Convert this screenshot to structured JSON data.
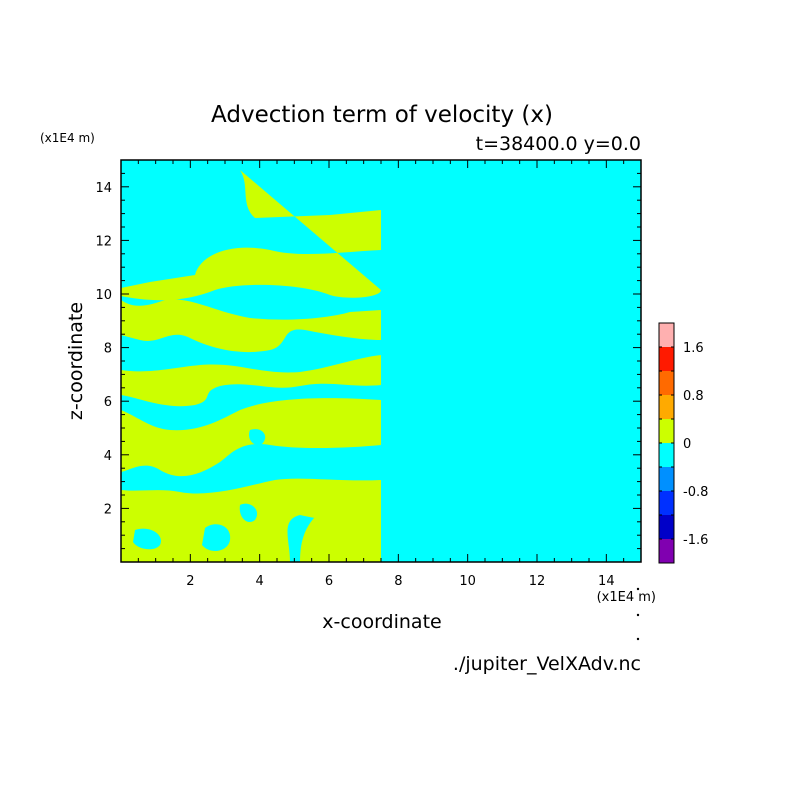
{
  "chart_data": {
    "type": "heatmap",
    "title": "Advection term of velocity (x)",
    "subtitle": "t=38400.0 y=0.0",
    "xlabel": "x-coordinate",
    "ylabel": "z-coordinate",
    "x_unit": "(x1E4 m)",
    "y_unit": "(x1E4 m)",
    "xlim": [
      0,
      15
    ],
    "ylim": [
      0,
      15
    ],
    "x_ticks": [
      2,
      4,
      6,
      8,
      10,
      12,
      14
    ],
    "y_ticks": [
      2,
      4,
      6,
      8,
      10,
      12,
      14
    ],
    "colorbar": {
      "ticks": [
        "1.6",
        "0.8",
        "0",
        "-0.8",
        "-1.6"
      ],
      "levels": [
        {
          "color": "#ffb0b0"
        },
        {
          "color": "#ff1a00"
        },
        {
          "color": "#ff6a00"
        },
        {
          "color": "#ffaa00"
        },
        {
          "color": "#ccff00"
        },
        {
          "color": "#00ffff"
        },
        {
          "color": "#0090ff"
        },
        {
          "color": "#0030ff"
        },
        {
          "color": "#0000c8"
        },
        {
          "color": "#8000b0"
        }
      ]
    },
    "colors": {
      "positive_small": "#ccff00",
      "negative_small": "#00ffff"
    },
    "footer": "./jupiter_VelXAdv.nc"
  }
}
